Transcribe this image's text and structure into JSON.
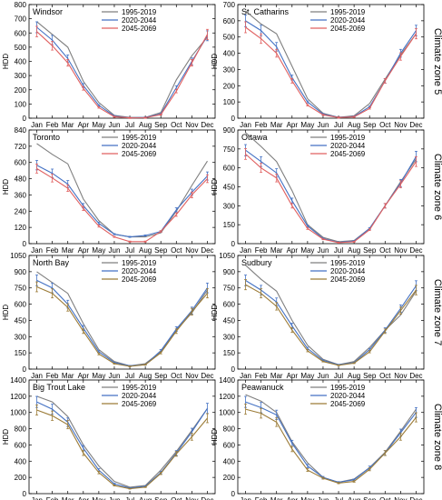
{
  "colors": {
    "c1995": "#7f7f7f",
    "c2020": "#4472c4",
    "c2045": "#e06060",
    "c2045_alt": "#9c7c38"
  },
  "zones": [
    "Climate zone 5",
    "Climate zone 6",
    "Climate zone 7",
    "Climate zone 8"
  ],
  "chart_data": [
    {
      "type": "line",
      "title": "Windsor",
      "ylabel": "HDD",
      "ylim": [
        0,
        800
      ],
      "yticks": [
        0,
        100,
        200,
        300,
        400,
        500,
        600,
        700,
        800
      ],
      "categories": [
        "Jan",
        "Feb",
        "Mar",
        "Apr",
        "May",
        "Jun",
        "Jul",
        "Aug",
        "Sep",
        "Oct",
        "Nov",
        "Dec"
      ],
      "series": [
        {
          "name": "1995-2019",
          "color": "#7f7f7f",
          "values": [
            680,
            590,
            500,
            260,
            110,
            20,
            5,
            5,
            40,
            270,
            440,
            570
          ]
        },
        {
          "name": "2020-2044",
          "color": "#4472c4",
          "values": [
            640,
            550,
            420,
            230,
            90,
            15,
            3,
            5,
            30,
            215,
            400,
            580
          ]
        },
        {
          "name": "2045-2069",
          "color": "#e06060",
          "values": [
            610,
            510,
            390,
            210,
            75,
            10,
            2,
            3,
            25,
            190,
            390,
            590
          ]
        }
      ],
      "legend": "top"
    },
    {
      "type": "line",
      "title": "St. Catharins",
      "ylabel": "HDD",
      "ylim": [
        0,
        700
      ],
      "yticks": [
        0,
        100,
        200,
        300,
        400,
        500,
        600,
        700
      ],
      "categories": [
        "Jan",
        "Feb",
        "Mar",
        "Apr",
        "May",
        "Jun",
        "Jul",
        "Aug",
        "Sep",
        "Oct",
        "Nov",
        "Dec"
      ],
      "series": [
        {
          "name": "1995-2019",
          "color": "#7f7f7f",
          "values": [
            660,
            580,
            520,
            320,
            120,
            30,
            5,
            15,
            90,
            240,
            390,
            520
          ]
        },
        {
          "name": "2020-2044",
          "color": "#4472c4",
          "values": [
            600,
            540,
            440,
            250,
            100,
            25,
            5,
            10,
            70,
            230,
            400,
            540
          ]
        },
        {
          "name": "2045-2069",
          "color": "#e06060",
          "values": [
            560,
            490,
            400,
            230,
            80,
            20,
            4,
            8,
            60,
            230,
            380,
            520
          ]
        }
      ],
      "legend": "top"
    },
    {
      "type": "line",
      "title": "Toronto",
      "ylabel": "HDD",
      "ylim": [
        0,
        840
      ],
      "yticks": [
        0,
        120,
        240,
        360,
        480,
        600,
        720,
        840
      ],
      "categories": [
        "Jan",
        "Feb",
        "Mar",
        "Apr",
        "May",
        "Jun",
        "Jul",
        "Aug",
        "Sep",
        "Oct",
        "Nov",
        "Dec"
      ],
      "series": [
        {
          "name": "1995-2019",
          "color": "#7f7f7f",
          "values": [
            740,
            660,
            590,
            330,
            170,
            70,
            50,
            50,
            80,
            240,
            430,
            610
          ]
        },
        {
          "name": "2020-2044",
          "color": "#4472c4",
          "values": [
            580,
            520,
            440,
            280,
            150,
            70,
            50,
            60,
            90,
            250,
            380,
            500
          ]
        },
        {
          "name": "2045-2069",
          "color": "#e06060",
          "values": [
            555,
            485,
            410,
            260,
            130,
            50,
            15,
            15,
            90,
            215,
            360,
            480
          ]
        }
      ],
      "legend": "top"
    },
    {
      "type": "line",
      "title": "Ottawa",
      "ylabel": "HDD",
      "ylim": [
        0,
        900
      ],
      "yticks": [
        0,
        150,
        300,
        450,
        600,
        750,
        900
      ],
      "categories": [
        "Jan",
        "Feb",
        "Mar",
        "Apr",
        "May",
        "Jun",
        "Jul",
        "Aug",
        "Sep",
        "Oct",
        "Nov",
        "Dec"
      ],
      "series": [
        {
          "name": "1995-2019",
          "color": "#7f7f7f",
          "values": [
            880,
            770,
            650,
            420,
            150,
            50,
            15,
            25,
            120,
            300,
            490,
            670
          ]
        },
        {
          "name": "2020-2044",
          "color": "#4472c4",
          "values": [
            740,
            650,
            560,
            340,
            140,
            40,
            10,
            20,
            120,
            300,
            480,
            690
          ]
        },
        {
          "name": "2045-2069",
          "color": "#e06060",
          "values": [
            710,
            600,
            520,
            300,
            120,
            35,
            8,
            15,
            110,
            300,
            470,
            650
          ]
        }
      ],
      "legend": "top"
    },
    {
      "type": "line",
      "title": "North Bay",
      "ylabel": "HDD",
      "ylim": [
        0,
        1050
      ],
      "yticks": [
        0,
        150,
        300,
        450,
        600,
        750,
        900,
        1050
      ],
      "categories": [
        "Jan",
        "Feb",
        "Mar",
        "Apr",
        "May",
        "Jun",
        "Jul",
        "Aug",
        "Sep",
        "Oct",
        "Nov",
        "Dec"
      ],
      "series": [
        {
          "name": "1995-2019",
          "color": "#7f7f7f",
          "values": [
            900,
            800,
            700,
            420,
            180,
            70,
            30,
            50,
            160,
            360,
            520,
            730
          ]
        },
        {
          "name": "2020-2044",
          "color": "#4472c4",
          "values": [
            820,
            750,
            600,
            380,
            160,
            60,
            30,
            40,
            170,
            370,
            540,
            750
          ]
        },
        {
          "name": "2045-2069",
          "color": "#9c7c38",
          "values": [
            760,
            700,
            570,
            350,
            140,
            50,
            25,
            40,
            150,
            350,
            530,
            700
          ]
        }
      ],
      "legend": "top"
    },
    {
      "type": "line",
      "title": "Sudbury",
      "ylabel": "HDD",
      "ylim": [
        0,
        1050
      ],
      "yticks": [
        0,
        150,
        300,
        450,
        600,
        750,
        900,
        1050
      ],
      "categories": [
        "Jan",
        "Feb",
        "Mar",
        "Apr",
        "May",
        "Jun",
        "Jul",
        "Aug",
        "Sep",
        "Oct",
        "Nov",
        "Dec"
      ],
      "series": [
        {
          "name": "1995-2019",
          "color": "#7f7f7f",
          "values": [
            960,
            830,
            720,
            450,
            220,
            90,
            40,
            70,
            200,
            360,
            500,
            720
          ]
        },
        {
          "name": "2020-2044",
          "color": "#4472c4",
          "values": [
            820,
            730,
            620,
            400,
            190,
            80,
            40,
            60,
            180,
            360,
            560,
            770
          ]
        },
        {
          "name": "2045-2069",
          "color": "#9c7c38",
          "values": [
            780,
            700,
            580,
            360,
            170,
            70,
            35,
            55,
            160,
            350,
            540,
            730
          ]
        }
      ],
      "legend": "top"
    },
    {
      "type": "line",
      "title": "Big Trout Lake",
      "ylabel": "HDD",
      "ylim": [
        0,
        1400
      ],
      "yticks": [
        0,
        200,
        400,
        600,
        800,
        1000,
        1200,
        1400
      ],
      "categories": [
        "Jan",
        "Feb",
        "Mar",
        "Apr",
        "May",
        "Jun",
        "Jul",
        "Aug",
        "Sep",
        "Oct",
        "Nov",
        "Dec"
      ],
      "series": [
        {
          "name": "1995-2019",
          "color": "#7f7f7f",
          "values": [
            1200,
            1130,
            950,
            600,
            340,
            150,
            80,
            100,
            290,
            520,
            780,
            1050
          ]
        },
        {
          "name": "2020-2044",
          "color": "#4472c4",
          "values": [
            1130,
            1040,
            880,
            560,
            290,
            120,
            70,
            90,
            260,
            500,
            760,
            1050
          ]
        },
        {
          "name": "2045-2069",
          "color": "#9c7c38",
          "values": [
            1030,
            960,
            850,
            500,
            260,
            100,
            60,
            80,
            250,
            490,
            700,
            930
          ]
        }
      ],
      "legend": "top"
    },
    {
      "type": "line",
      "title": "Peawanuck",
      "ylabel": "HDD",
      "ylim": [
        0,
        1400
      ],
      "yticks": [
        0,
        200,
        400,
        600,
        800,
        1000,
        1200,
        1400
      ],
      "categories": [
        "Jan",
        "Feb",
        "Mar",
        "Apr",
        "May",
        "Jun",
        "Jul",
        "Aug",
        "Sep",
        "Oct",
        "Nov",
        "Dec"
      ],
      "series": [
        {
          "name": "1995-2019",
          "color": "#7f7f7f",
          "values": [
            1220,
            1140,
            1000,
            640,
            380,
            200,
            140,
            180,
            320,
            510,
            770,
            1040
          ]
        },
        {
          "name": "2020-2044",
          "color": "#4472c4",
          "values": [
            1130,
            1060,
            970,
            620,
            340,
            200,
            140,
            170,
            320,
            500,
            750,
            1000
          ]
        },
        {
          "name": "2045-2069",
          "color": "#9c7c38",
          "values": [
            1040,
            990,
            880,
            550,
            290,
            190,
            130,
            150,
            300,
            500,
            700,
            940
          ]
        }
      ],
      "legend": "top"
    }
  ]
}
